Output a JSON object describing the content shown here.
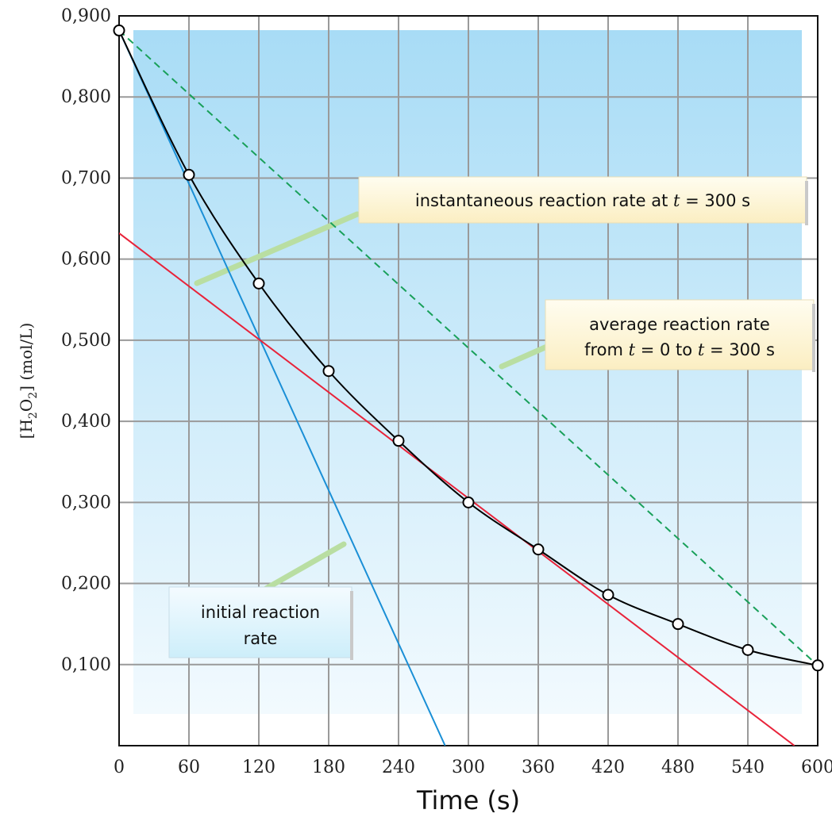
{
  "chart_data": {
    "type": "line",
    "xlabel": "Time (s)",
    "ylabel_parts": [
      "[H",
      "2",
      "O",
      "2",
      "] (mol/L)"
    ],
    "x_ticks": [
      0,
      60,
      120,
      180,
      240,
      300,
      360,
      420,
      480,
      540,
      600
    ],
    "x_tick_labels": [
      "0",
      "60",
      "120",
      "180",
      "240",
      "300",
      "360",
      "420",
      "480",
      "540",
      "600"
    ],
    "y_ticks": [
      0.1,
      0.2,
      0.3,
      0.4,
      0.5,
      0.6,
      0.7,
      0.8,
      0.9
    ],
    "y_tick_labels": [
      "0,100",
      "0,200",
      "0,300",
      "0,400",
      "0,500",
      "0,600",
      "0,700",
      "0,800",
      "0,900"
    ],
    "xlim": [
      0,
      600
    ],
    "ylim": [
      0,
      0.9
    ],
    "grid": true,
    "series": [
      {
        "x": [
          0,
          60,
          120,
          180,
          240,
          300,
          360,
          420,
          480,
          540,
          600
        ],
        "y": [
          0.882,
          0.704,
          0.57,
          0.462,
          0.376,
          0.3,
          0.242,
          0.186,
          0.15,
          0.118,
          0.099
        ],
        "color": "#000000",
        "markers": true
      }
    ],
    "lines": [
      {
        "x": [
          0,
          280
        ],
        "y": [
          0.882,
          0.0
        ],
        "color": "#1a8fd6",
        "style": "solid"
      },
      {
        "x": [
          0,
          580
        ],
        "y": [
          0.632,
          0.0
        ],
        "color": "#e8233a",
        "style": "solid"
      },
      {
        "x": [
          0,
          600
        ],
        "y": [
          0.882,
          0.099
        ],
        "color": "#19a05a",
        "style": "dashed"
      }
    ],
    "annotations": [
      {
        "text_parts": [
          "instantaneous reaction rate at ",
          "t",
          " = 300 s"
        ]
      },
      {
        "lines": [
          [
            "average reaction rate"
          ],
          [
            "from ",
            "t",
            " = 0 to  ",
            "t",
            " = 300 s"
          ]
        ]
      },
      {
        "lines": [
          [
            "initial reaction"
          ],
          [
            "rate"
          ]
        ]
      }
    ],
    "colors": {
      "background_top": "#a8dcf6",
      "background_bottom": "#f2fafe",
      "grid": "#9a9a9a",
      "callout_arrow": "#b9dea2"
    }
  }
}
